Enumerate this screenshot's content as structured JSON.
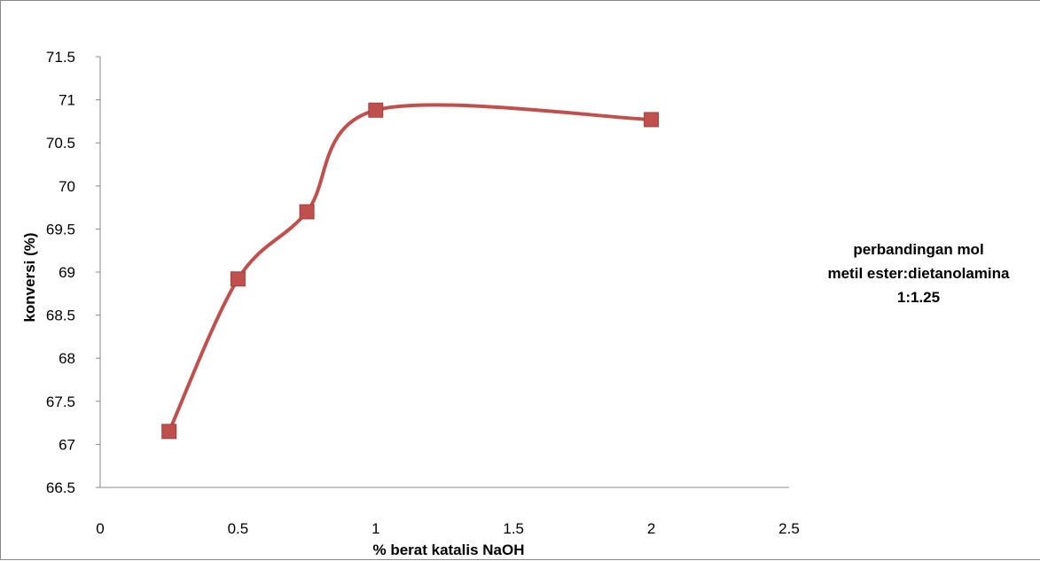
{
  "chart_data": {
    "type": "scatter",
    "title": "",
    "xlabel": "% berat katalis NaOH",
    "ylabel": "konversi (%)",
    "xlim": [
      0,
      2.5
    ],
    "ylim": [
      66.5,
      71.5
    ],
    "x_ticks": [
      "0",
      "0.5",
      "1",
      "1.5",
      "2",
      "2.5"
    ],
    "y_ticks": [
      "66.5",
      "67",
      "67.5",
      "68",
      "68.5",
      "69",
      "69.5",
      "70",
      "70.5",
      "71",
      "71.5"
    ],
    "grid": false,
    "smooth_line": true,
    "series": [
      {
        "name": "perbandingan mol metil ester:dietanolamina 1:1.25",
        "name_lines": [
          "perbandingan mol",
          "metil ester:dietanolamina",
          "1:1.25"
        ],
        "color": "#c0504d",
        "marker": "square",
        "x": [
          0.25,
          0.5,
          0.75,
          1,
          2
        ],
        "y": [
          67.15,
          68.92,
          69.7,
          70.88,
          70.77
        ]
      }
    ],
    "legend_position": "right"
  }
}
